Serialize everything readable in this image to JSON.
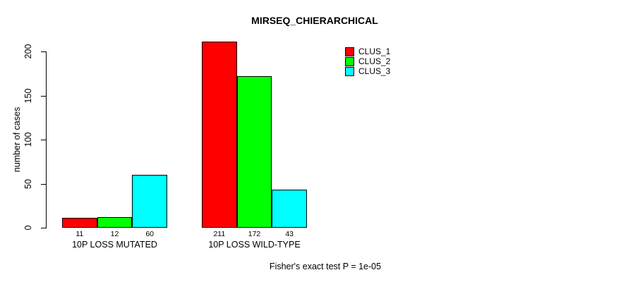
{
  "chart_data": {
    "type": "bar",
    "title": "MIRSEQ_CHIERARCHICAL",
    "ylabel": "number of cases",
    "xlabel": "",
    "categories": [
      "10P LOSS MUTATED",
      "10P LOSS WILD-TYPE"
    ],
    "series": [
      {
        "name": "CLUS_1",
        "color": "#ff0000",
        "values": [
          11,
          211
        ]
      },
      {
        "name": "CLUS_2",
        "color": "#00ff00",
        "values": [
          12,
          172
        ]
      },
      {
        "name": "CLUS_3",
        "color": "#00ffff",
        "values": [
          60,
          43
        ]
      }
    ],
    "bar_value_labels": [
      [
        "11",
        "12",
        "60"
      ],
      [
        "211",
        "172",
        "43"
      ]
    ],
    "y_ticks": [
      0,
      50,
      100,
      150,
      200
    ],
    "ylim": [
      0,
      211
    ],
    "grid": false,
    "legend_position": "top-right",
    "annotation": "Fisher's exact test P = 1e-05"
  },
  "legend": {
    "items": [
      {
        "label": "CLUS_1",
        "color": "#ff0000"
      },
      {
        "label": "CLUS_2",
        "color": "#00ff00"
      },
      {
        "label": "CLUS_3",
        "color": "#00ffff"
      }
    ]
  },
  "colors": {
    "background": "#ffffff",
    "axis": "#000000",
    "text": "#000000"
  }
}
